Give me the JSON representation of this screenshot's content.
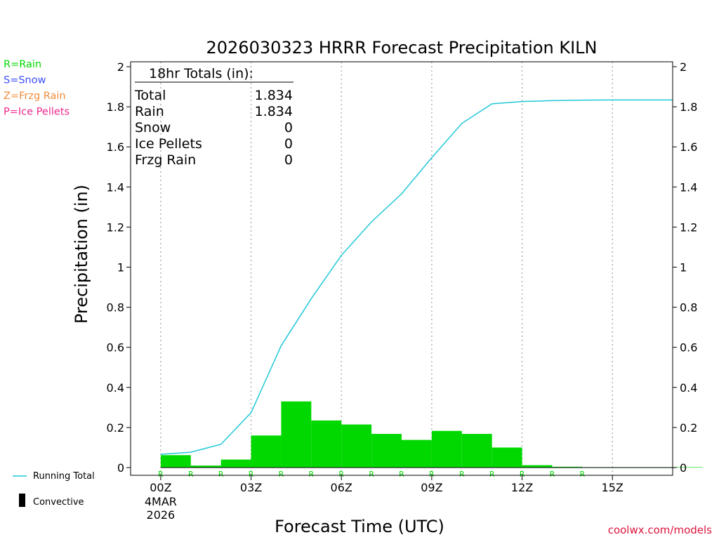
{
  "chart_data": {
    "type": "bar",
    "title": "2026030323 HRRR Forecast Precipitation KILN",
    "xlabel": "Forecast Time (UTC)",
    "ylabel": "Precipitation (in)",
    "ylim": [
      0,
      2
    ],
    "xlim": [
      -1,
      17
    ],
    "y_ticks": [
      0,
      0.2,
      0.4,
      0.6,
      0.8,
      1,
      1.2,
      1.4,
      1.6,
      1.8,
      2
    ],
    "y_tick_labels": [
      "0",
      "0.2",
      "0.4",
      "0.6",
      "0.8",
      "1",
      "1.2",
      "1.4",
      "1.6",
      "1.8",
      "2"
    ],
    "x_ticks": [
      {
        "hour": 0,
        "label": "00Z",
        "sub1": "4MAR",
        "sub2": "2026"
      },
      {
        "hour": 3,
        "label": "03Z"
      },
      {
        "hour": 6,
        "label": "06Z"
      },
      {
        "hour": 9,
        "label": "09Z"
      },
      {
        "hour": 12,
        "label": "12Z"
      },
      {
        "hour": 15,
        "label": "15Z"
      }
    ],
    "grid": "vertical-dotted",
    "series": [
      {
        "name": "Hourly Rain",
        "kind": "bar",
        "color": "#00d800",
        "hours": [
          0,
          1,
          2,
          3,
          4,
          5,
          6,
          7,
          8,
          9,
          10,
          11,
          12,
          13,
          14,
          15,
          16,
          17
        ],
        "values": [
          0.062,
          0.01,
          0.04,
          0.16,
          0.33,
          0.235,
          0.215,
          0.168,
          0.138,
          0.183,
          0.168,
          0.1,
          0.012,
          0.004,
          0.002,
          0.001,
          0.001,
          0.002
        ]
      },
      {
        "name": "Running Total",
        "kind": "line",
        "color": "#20c8d8",
        "x": [
          0,
          1,
          2,
          3,
          4,
          5,
          6,
          7,
          8,
          9,
          10,
          11,
          12,
          13,
          14,
          15,
          16,
          17
        ],
        "values": [
          0.066,
          0.077,
          0.116,
          0.274,
          0.608,
          0.843,
          1.059,
          1.226,
          1.366,
          1.546,
          1.717,
          1.815,
          1.826,
          1.831,
          1.833,
          1.834,
          1.834,
          1.834
        ]
      }
    ],
    "ptype_markers": {
      "color": "#00d800",
      "hours": [
        0,
        1,
        2,
        3,
        4,
        5,
        6,
        7,
        8,
        9,
        10,
        11,
        12,
        13,
        14
      ],
      "labels": [
        "R",
        "R",
        "R",
        "R",
        "R",
        "R",
        "R",
        "R",
        "R",
        "R",
        "R",
        "R",
        "R",
        "R",
        "R"
      ]
    },
    "totals_box": {
      "header": "18hr Totals (in):",
      "rows": [
        {
          "label": "Total",
          "value": "1.834"
        },
        {
          "label": "Rain",
          "value": "1.834"
        },
        {
          "label": "Snow",
          "value": "0"
        },
        {
          "label": "Ice Pellets",
          "value": "0"
        },
        {
          "label": "Frzg Rain",
          "value": "0"
        }
      ]
    },
    "ptype_legend": [
      {
        "text": "R=Rain",
        "color": "#00d800"
      },
      {
        "text": "S=Snow",
        "color": "#3c50ff"
      },
      {
        "text": "Z=Frzg Rain",
        "color": "#f08c3c"
      },
      {
        "text": "P=Ice Pellets",
        "color": "#f0288c"
      }
    ],
    "series_legend": [
      {
        "label": "Running Total",
        "color": "#20c8d8",
        "symbol": "line"
      },
      {
        "label": "Convective",
        "color": "#000000",
        "symbol": "bar"
      }
    ],
    "credit": "coolwx.com/models"
  }
}
